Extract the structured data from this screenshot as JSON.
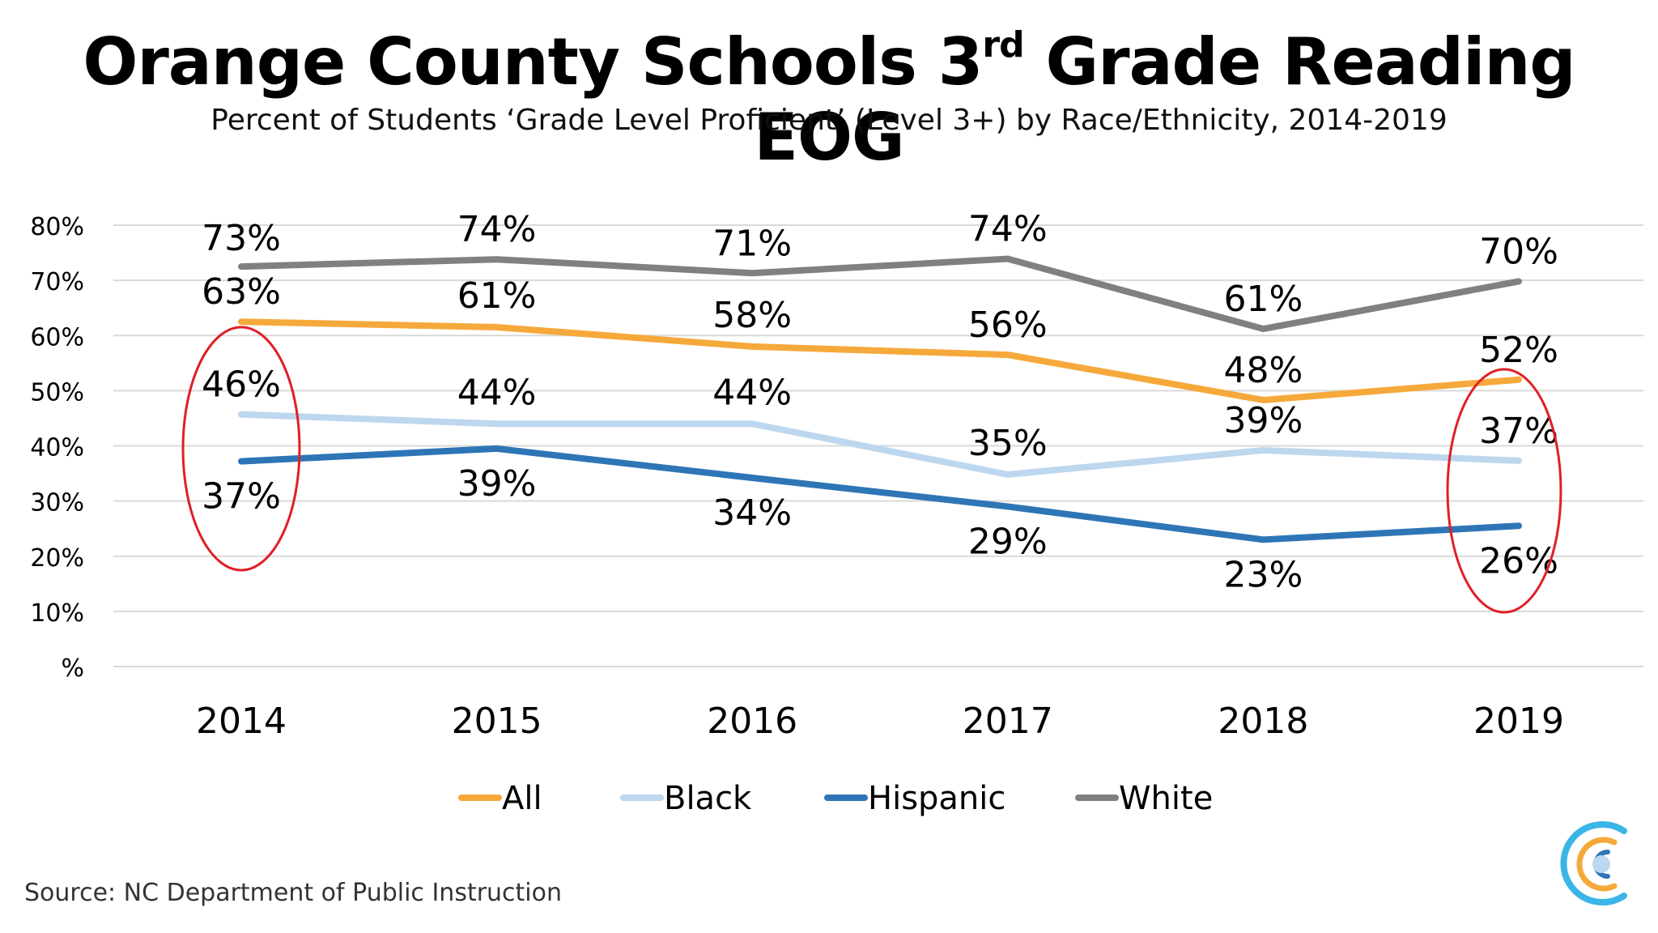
{
  "header": {
    "title_main": "Orange County Schools 3",
    "title_sup": "rd",
    "title_rest": " Grade Reading EOG",
    "subtitle": "Percent of Students ‘Grade Level Proficient’ (Level 3+) by Race/Ethnicity, 2014-2019"
  },
  "chart_data": {
    "type": "line",
    "categories": [
      "2014",
      "2015",
      "2016",
      "2017",
      "2018",
      "2019"
    ],
    "ylim": [
      0,
      80
    ],
    "y_ticks": [
      {
        "value": 80,
        "label": "80%"
      },
      {
        "value": 70,
        "label": "70%"
      },
      {
        "value": 60,
        "label": "60%"
      },
      {
        "value": 50,
        "label": "50%"
      },
      {
        "value": 40,
        "label": "40%"
      },
      {
        "value": 30,
        "label": "30%"
      },
      {
        "value": 20,
        "label": "20%"
      },
      {
        "value": 10,
        "label": "10%"
      },
      {
        "value": 0,
        "label": "%"
      }
    ],
    "grid": true,
    "legend_position": "bottom",
    "series": [
      {
        "name": "White",
        "color": "#808080",
        "values": [
          72.5,
          73.8,
          71.3,
          73.9,
          61.2,
          69.8
        ],
        "labels": [
          "73%",
          "74%",
          "71%",
          "74%",
          "61%",
          "70%"
        ]
      },
      {
        "name": "All",
        "color": "#F6A93B",
        "values": [
          62.5,
          61.5,
          58,
          56.5,
          48.3,
          52
        ],
        "labels": [
          "63%",
          "61%",
          "58%",
          "56%",
          "48%",
          "52%"
        ]
      },
      {
        "name": "Black",
        "color": "#BDD7EE",
        "values": [
          45.7,
          44,
          44,
          34.8,
          39.2,
          37.3
        ],
        "labels": [
          "46%",
          "44%",
          "44%",
          "35%",
          "39%",
          "37%"
        ]
      },
      {
        "name": "Hispanic",
        "color": "#2E75B6",
        "values": [
          37.2,
          39.5,
          34.2,
          29,
          23,
          25.5
        ],
        "labels": [
          "37%",
          "39%",
          "34%",
          "29%",
          "23%",
          "26%"
        ]
      }
    ],
    "legend_order": [
      "All",
      "Black",
      "Hispanic",
      "White"
    ],
    "highlight_color": "#E01F26"
  },
  "footer": {
    "source": "Source: NC Department of Public Instruction"
  },
  "logo": {
    "name": "logo-icon",
    "colors": [
      "#3AB5E6",
      "#F6A93B",
      "#2E75B6",
      "#BDD7EE"
    ]
  }
}
